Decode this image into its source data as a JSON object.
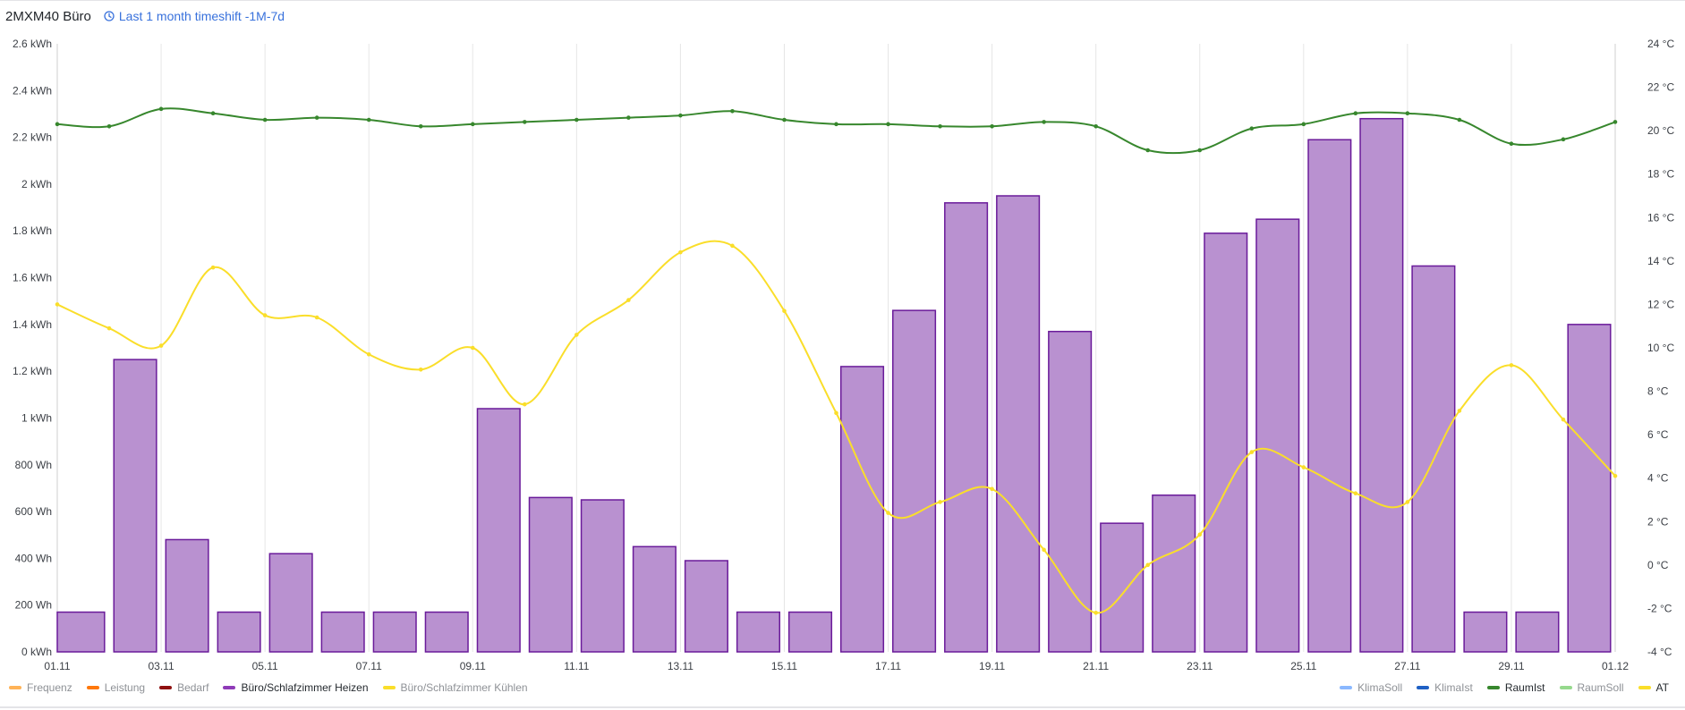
{
  "panel": {
    "title": "2MXM40 Büro",
    "timeshift_label": "Last 1 month timeshift -1M-7d"
  },
  "colors": {
    "heizen_fill": "#b991d0",
    "heizen_stroke": "#6a1b9a",
    "raumist": "#37872d",
    "at": "#fade2a",
    "grid": "#e6e6e6"
  },
  "legend_left": [
    {
      "label": "Frequenz",
      "color": "#ffb357",
      "active": false
    },
    {
      "label": "Leistung",
      "color": "#ff780a",
      "active": false
    },
    {
      "label": "Bedarf",
      "color": "#8f1010",
      "active": false
    },
    {
      "label": "Büro/Schlafzimmer Heizen",
      "color": "#8f3bb8",
      "active": true
    },
    {
      "label": "Büro/Schlafzimmer Kühlen",
      "color": "#fade2a",
      "active": false
    }
  ],
  "legend_right": [
    {
      "label": "KlimaSoll",
      "color": "#8ab8ff",
      "active": false
    },
    {
      "label": "KlimaIst",
      "color": "#1f60c4",
      "active": false
    },
    {
      "label": "RaumIst",
      "color": "#37872d",
      "active": true
    },
    {
      "label": "RaumSoll",
      "color": "#96d98d",
      "active": false
    },
    {
      "label": "AT",
      "color": "#fade2a",
      "active": true
    }
  ],
  "chart_data": {
    "type": "bar",
    "x_tick_labels": [
      "01.11",
      "03.11",
      "05.11",
      "07.11",
      "09.11",
      "11.11",
      "13.11",
      "15.11",
      "17.11",
      "19.11",
      "21.11",
      "23.11",
      "25.11",
      "27.11",
      "29.11",
      "01.12"
    ],
    "y_left_tick_labels": [
      "0 kWh",
      "200 Wh",
      "400 Wh",
      "600 Wh",
      "800 Wh",
      "1 kWh",
      "1.2 kWh",
      "1.4 kWh",
      "1.6 kWh",
      "1.8 kWh",
      "2 kWh",
      "2.2 kWh",
      "2.4 kWh",
      "2.6 kWh"
    ],
    "y_left_range_kwh": [
      0,
      2.6
    ],
    "y_right_tick_labels": [
      "-4 °C",
      "-2 °C",
      "0 °C",
      "2 °C",
      "4 °C",
      "6 °C",
      "8 °C",
      "10 °C",
      "12 °C",
      "14 °C",
      "16 °C",
      "18 °C",
      "20 °C",
      "22 °C",
      "24 °C"
    ],
    "y_right_range_c": [
      -4,
      24
    ],
    "x_start": "01.11",
    "x_end": "01.12",
    "grid": true,
    "bars": {
      "name": "Büro/Schlafzimmer Heizen",
      "unit": "kWh",
      "days": [
        1,
        2,
        3,
        4,
        5,
        6,
        7,
        8,
        9,
        10,
        11,
        12,
        13,
        14,
        15,
        16,
        17,
        18,
        19,
        20,
        21,
        22,
        23,
        24,
        25,
        26,
        27,
        28,
        29,
        30
      ],
      "values": [
        0.17,
        1.25,
        0.48,
        0.17,
        0.42,
        0.17,
        0.17,
        0.17,
        1.04,
        0.66,
        0.65,
        0.45,
        0.39,
        0.17,
        0.17,
        1.22,
        1.46,
        1.92,
        1.95,
        1.37,
        0.55,
        0.67,
        1.79,
        1.85,
        2.19,
        2.28,
        1.65,
        0.17,
        0.17,
        1.4
      ]
    },
    "lines": [
      {
        "name": "RaumIst",
        "unit": "°C",
        "days": [
          1,
          2,
          3,
          4,
          5,
          6,
          7,
          8,
          9,
          10,
          11,
          12,
          13,
          14,
          15,
          16,
          17,
          18,
          19,
          20,
          21,
          22,
          23,
          24,
          25,
          26,
          27,
          28,
          29,
          30,
          31
        ],
        "values": [
          20.3,
          20.2,
          21.0,
          20.8,
          20.5,
          20.6,
          20.5,
          20.2,
          20.3,
          20.4,
          20.5,
          20.6,
          20.7,
          20.9,
          20.5,
          20.3,
          20.3,
          20.2,
          20.2,
          20.4,
          20.2,
          19.1,
          19.1,
          20.1,
          20.3,
          20.8,
          20.8,
          20.5,
          19.4,
          19.6,
          20.4
        ]
      },
      {
        "name": "AT",
        "unit": "°C",
        "days": [
          1,
          2,
          3,
          4,
          5,
          6,
          7,
          8,
          9,
          10,
          11,
          12,
          13,
          14,
          15,
          16,
          17,
          18,
          19,
          20,
          21,
          22,
          23,
          24,
          25,
          26,
          27,
          28,
          29,
          30,
          31
        ],
        "values": [
          12.0,
          10.9,
          10.1,
          13.7,
          11.5,
          11.4,
          9.7,
          9.0,
          10.0,
          7.4,
          10.6,
          12.2,
          14.4,
          14.7,
          11.7,
          7.0,
          2.4,
          2.9,
          3.5,
          0.7,
          -2.2,
          0.0,
          1.4,
          5.2,
          4.5,
          3.3,
          2.9,
          7.1,
          9.2,
          6.7,
          4.1
        ]
      }
    ]
  }
}
